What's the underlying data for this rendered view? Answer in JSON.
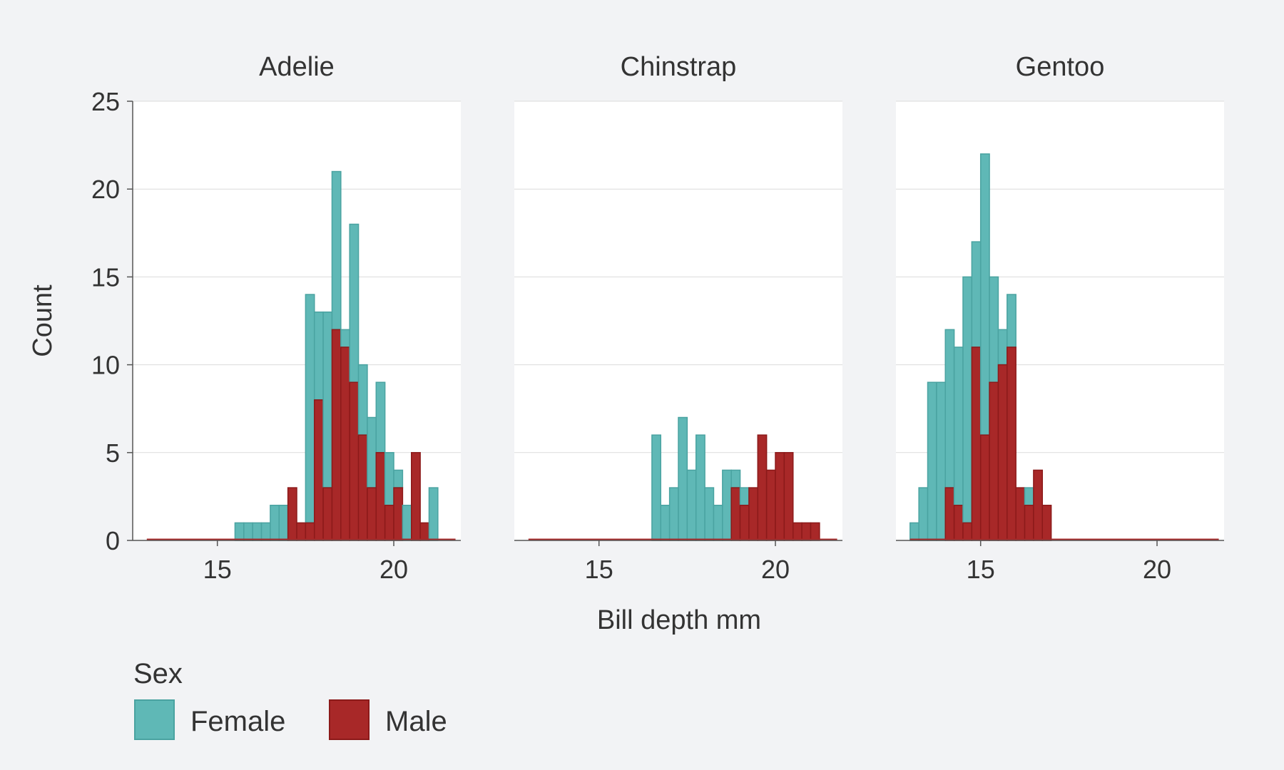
{
  "chart_data": {
    "type": "bar",
    "subtype": "faceted-stacked-histogram",
    "xlabel": "Bill depth mm",
    "ylabel": "Count",
    "xlim": [
      12.6,
      21.9
    ],
    "ylim": [
      0,
      25
    ],
    "xticks": [
      15,
      20
    ],
    "yticks": [
      0,
      5,
      10,
      15,
      20,
      25
    ],
    "bin_width": 0.25,
    "x_start": 13.0,
    "grid": "horizontal",
    "legend": {
      "title": "Sex",
      "position": "bottom-left",
      "entries": [
        {
          "name": "Female",
          "color": "#5fb8b6"
        },
        {
          "name": "Male",
          "color": "#a82828"
        }
      ]
    },
    "colors": {
      "female_fill": "#5fb8b6",
      "female_stroke": "#4aa3a1",
      "male_fill": "#a82828",
      "male_stroke": "#8c1a1a",
      "panel_background": "#ffffff",
      "page_background": "#f2f3f5",
      "gridline": "#dcdcdc"
    },
    "facets": [
      {
        "name": "Adelie",
        "female": [
          0,
          0,
          0,
          0,
          0,
          0,
          0,
          0,
          0,
          0,
          1,
          1,
          1,
          1,
          2,
          2,
          0,
          0,
          13,
          5,
          10,
          9,
          1,
          9,
          4,
          4,
          4,
          3,
          1,
          2,
          0,
          0,
          3,
          0,
          0
        ],
        "male": [
          0,
          0,
          0,
          0,
          0,
          0,
          0,
          0,
          0,
          0,
          0,
          0,
          0,
          0,
          0,
          0,
          3,
          1,
          1,
          8,
          3,
          12,
          11,
          9,
          6,
          3,
          5,
          2,
          3,
          0,
          5,
          1,
          0,
          0,
          0
        ]
      },
      {
        "name": "Chinstrap",
        "female": [
          0,
          0,
          0,
          0,
          0,
          0,
          0,
          0,
          0,
          0,
          0,
          0,
          0,
          0,
          6,
          2,
          3,
          7,
          4,
          6,
          3,
          2,
          4,
          1,
          1,
          0,
          0,
          0,
          0,
          0,
          0,
          0,
          0,
          0,
          0
        ],
        "male": [
          0,
          0,
          0,
          0,
          0,
          0,
          0,
          0,
          0,
          0,
          0,
          0,
          0,
          0,
          0,
          0,
          0,
          0,
          0,
          0,
          0,
          0,
          0,
          3,
          2,
          3,
          6,
          4,
          5,
          5,
          1,
          1,
          1,
          0,
          0
        ]
      },
      {
        "name": "Gentoo",
        "female": [
          1,
          3,
          9,
          9,
          9,
          9,
          14,
          6,
          16,
          6,
          2,
          3,
          0,
          1,
          0,
          0,
          0,
          0,
          0,
          0,
          0,
          0,
          0,
          0,
          0,
          0,
          0,
          0,
          0,
          0,
          0,
          0,
          0,
          0,
          0
        ],
        "male": [
          0,
          0,
          0,
          0,
          3,
          2,
          1,
          11,
          6,
          9,
          10,
          11,
          3,
          2,
          4,
          2,
          0,
          0,
          0,
          0,
          0,
          0,
          0,
          0,
          0,
          0,
          0,
          0,
          0,
          0,
          0,
          0,
          0,
          0,
          0
        ]
      }
    ]
  }
}
